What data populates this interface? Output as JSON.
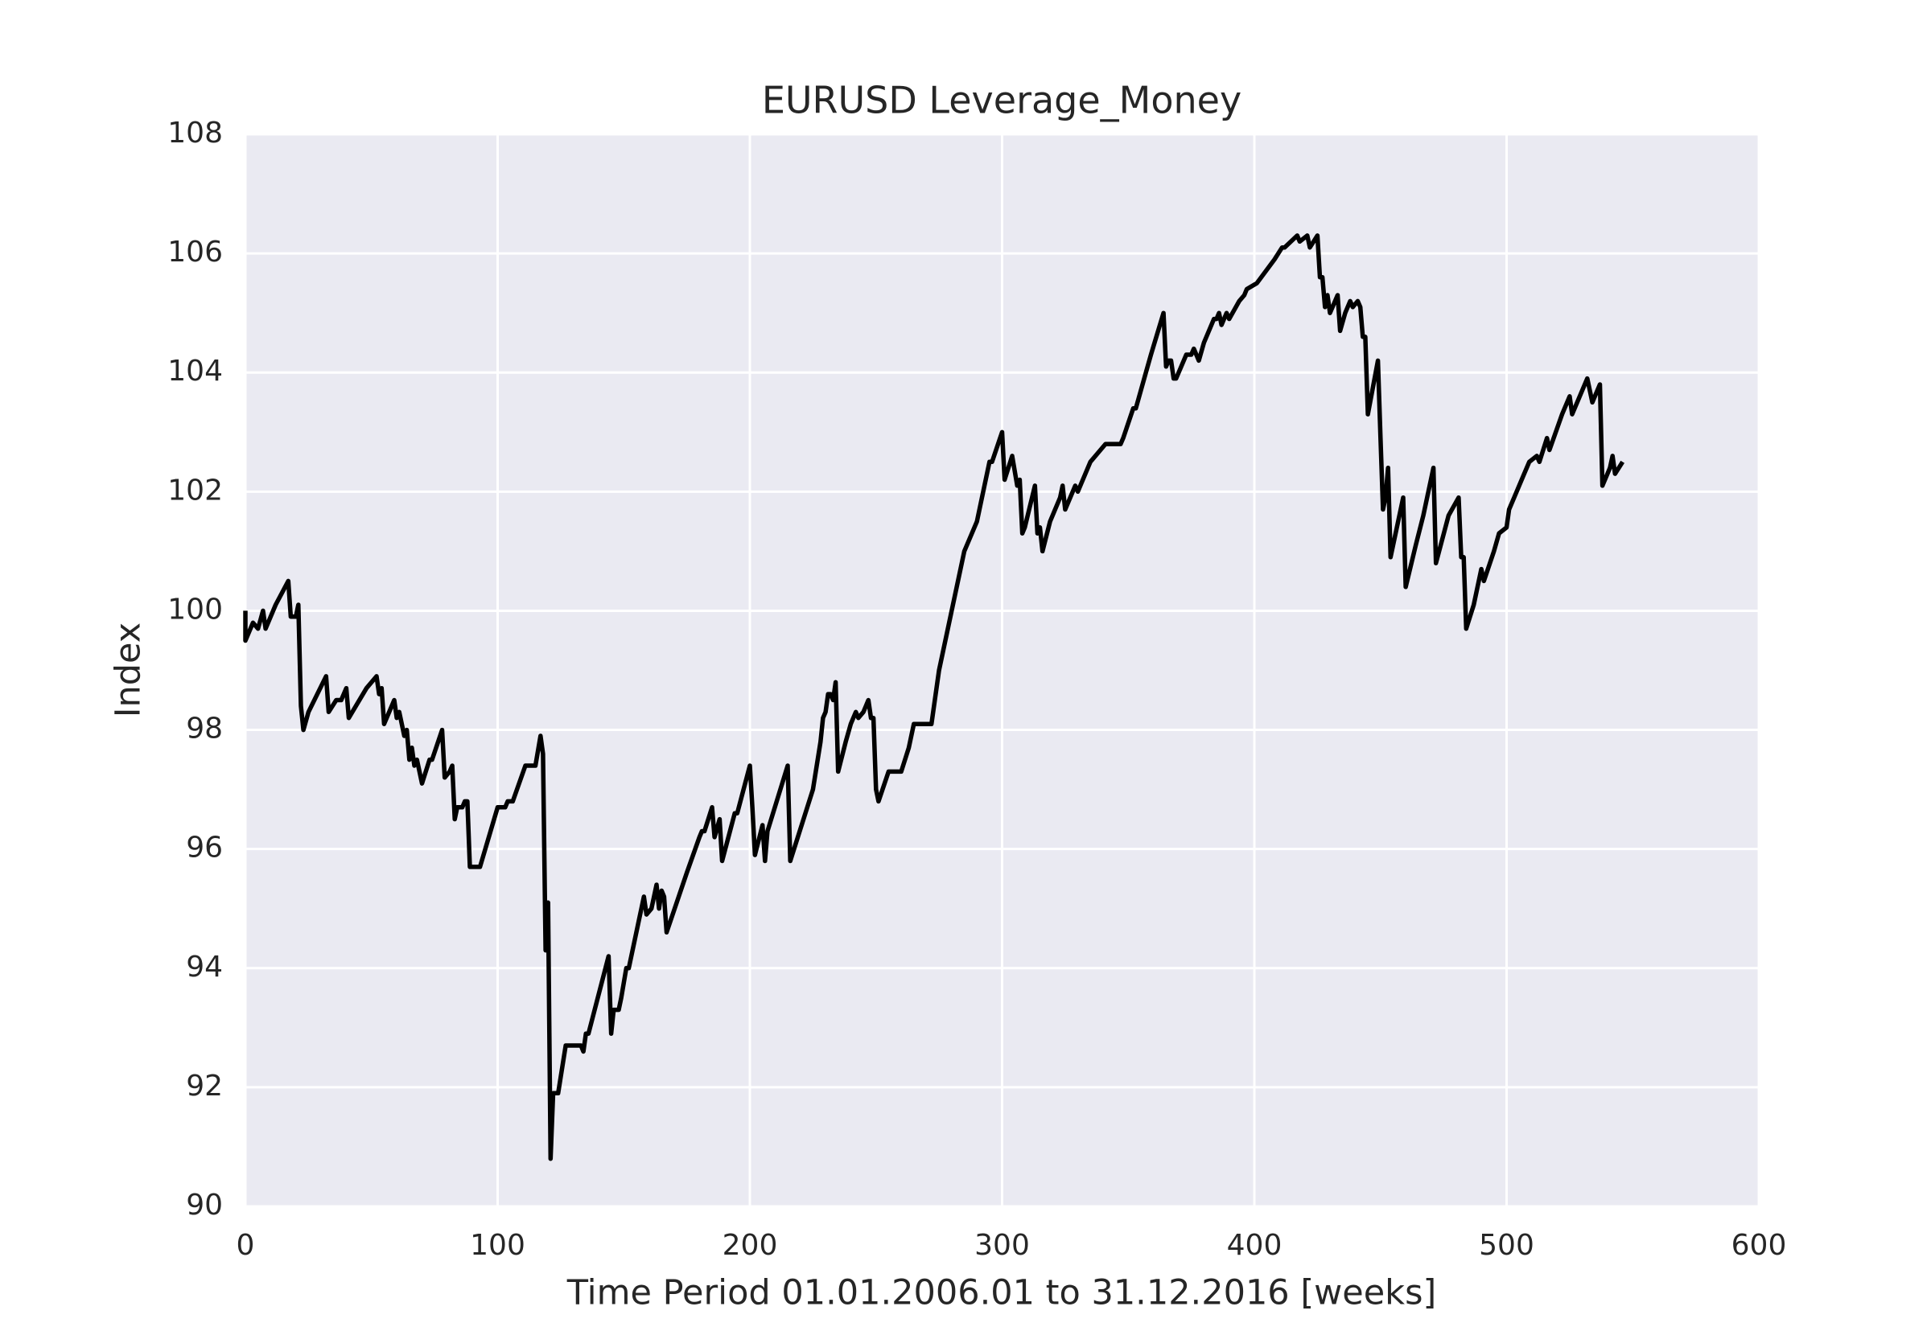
{
  "chart_data": {
    "type": "line",
    "title": "EURUSD Leverage_Money",
    "x_label": "Time Period 01.01.2006.01 to 31.12.2016 [weeks]",
    "y_label": "Index",
    "xlim": [
      0,
      600
    ],
    "xticks": [
      0,
      100,
      200,
      300,
      400,
      500,
      600
    ],
    "ylim": [
      90,
      108
    ],
    "yticks": [
      90,
      92,
      94,
      96,
      98,
      100,
      102,
      104,
      106,
      108
    ],
    "grid": true,
    "background": "#eaeaf2",
    "series": [
      {
        "color": "#000000",
        "x": [
          0,
          0,
          3,
          5,
          7,
          8,
          12,
          17,
          18,
          20,
          21,
          22,
          23,
          25,
          32,
          33,
          36,
          38,
          40,
          41,
          48,
          52,
          53,
          54,
          55,
          59,
          60,
          61,
          63,
          64,
          65,
          66,
          67,
          68,
          70,
          73,
          74,
          78,
          79,
          81,
          82,
          83,
          84,
          86,
          87,
          88,
          89,
          93,
          100,
          103,
          104,
          106,
          111,
          115,
          117,
          118,
          119,
          120,
          121,
          122,
          124,
          127,
          133,
          134,
          135,
          136,
          144,
          145,
          146,
          148,
          149,
          151,
          152,
          158,
          159,
          161,
          163,
          164,
          165,
          166,
          167,
          175,
          180,
          181,
          182,
          185,
          186,
          188,
          189,
          194,
          195,
          200,
          201,
          202,
          205,
          206,
          207,
          215,
          216,
          225,
          228,
          229,
          230,
          231,
          232,
          233,
          234,
          235,
          238,
          240,
          242,
          243,
          245,
          246,
          247,
          248,
          249,
          250,
          251,
          255,
          260,
          263,
          265,
          272,
          275,
          285,
          290,
          295,
          296,
          300,
          301,
          304,
          306,
          307,
          308,
          309,
          313,
          314,
          315,
          316,
          319,
          323,
          324,
          325,
          329,
          330,
          335,
          341,
          347,
          348,
          352,
          353,
          357,
          359,
          364,
          365,
          366,
          367,
          368,
          369,
          371,
          373,
          375,
          376,
          378,
          380,
          384,
          385,
          386,
          387,
          389,
          390,
          394,
          396,
          397,
          401,
          408,
          411,
          412,
          417,
          418,
          421,
          422,
          425,
          426,
          427,
          428,
          429,
          430,
          433,
          434,
          436,
          437,
          438,
          439,
          441,
          442,
          443,
          444,
          445,
          449,
          450,
          451,
          452,
          453,
          454,
          459,
          460,
          464,
          467,
          471,
          472,
          477,
          481,
          482,
          483,
          484,
          487,
          490,
          491,
          495,
          497,
          500,
          501,
          503,
          507,
          509,
          512,
          513,
          516,
          517,
          522,
          525,
          526,
          532,
          534,
          537,
          538,
          541,
          542,
          543,
          546
        ],
        "values": [
          100,
          99.5,
          99.8,
          99.7,
          100,
          99.7,
          100.1,
          100.5,
          99.9,
          99.9,
          100.1,
          98.4,
          98,
          98.3,
          98.9,
          98.3,
          98.5,
          98.5,
          98.7,
          98.2,
          98.7,
          98.9,
          98.6,
          98.7,
          98.1,
          98.5,
          98.2,
          98.3,
          97.9,
          98,
          97.5,
          97.7,
          97.4,
          97.5,
          97.1,
          97.5,
          97.5,
          98,
          97.2,
          97.3,
          97.4,
          96.5,
          96.7,
          96.7,
          96.8,
          96.8,
          95.7,
          95.7,
          96.7,
          96.7,
          96.8,
          96.8,
          97.4,
          97.4,
          97.9,
          97.6,
          94.3,
          95.1,
          90.8,
          91.9,
          91.9,
          92.7,
          92.7,
          92.6,
          92.9,
          92.9,
          94.2,
          92.9,
          93.3,
          93.3,
          93.5,
          94,
          94,
          95.2,
          94.9,
          95,
          95.4,
          95,
          95.3,
          95.2,
          94.6,
          95.6,
          96.2,
          96.3,
          96.3,
          96.7,
          96.2,
          96.5,
          95.8,
          96.6,
          96.6,
          97.4,
          96.7,
          95.9,
          96.4,
          95.8,
          96.3,
          97.4,
          95.8,
          97,
          97.8,
          98.2,
          98.3,
          98.6,
          98.6,
          98.5,
          98.8,
          97.3,
          97.8,
          98.1,
          98.3,
          98.2,
          98.3,
          98.4,
          98.5,
          98.2,
          98.2,
          97,
          96.8,
          97.3,
          97.3,
          97.7,
          98.1,
          98.1,
          99,
          101,
          101.5,
          102.5,
          102.5,
          103,
          102.2,
          102.6,
          102.1,
          102.2,
          101.3,
          101.4,
          102.1,
          101.3,
          101.4,
          101,
          101.5,
          101.9,
          102.1,
          101.7,
          102.1,
          102,
          102.5,
          102.8,
          102.8,
          102.9,
          103.4,
          103.4,
          104,
          104.3,
          105,
          104.1,
          104.2,
          104.2,
          103.9,
          103.9,
          104.1,
          104.3,
          104.3,
          104.4,
          104.2,
          104.5,
          104.9,
          104.9,
          105,
          104.8,
          105,
          104.9,
          105.2,
          105.3,
          105.4,
          105.5,
          105.9,
          106.1,
          106.1,
          106.3,
          106.2,
          106.3,
          106.1,
          106.3,
          105.6,
          105.6,
          105.1,
          105.3,
          105,
          105.3,
          104.7,
          105,
          105.1,
          105.2,
          105.1,
          105.2,
          105.1,
          104.6,
          104.6,
          103.3,
          104.2,
          102.9,
          101.7,
          101.9,
          102.4,
          100.9,
          101.9,
          100.4,
          101.1,
          101.6,
          102.4,
          100.8,
          101.6,
          101.9,
          100.9,
          100.9,
          99.7,
          100.1,
          100.7,
          100.5,
          101,
          101.3,
          101.4,
          101.7,
          101.9,
          102.3,
          102.5,
          102.6,
          102.5,
          102.9,
          102.7,
          103.3,
          103.6,
          103.3,
          103.9,
          103.5,
          103.8,
          102.1,
          102.4,
          102.6,
          102.3,
          102.5
        ]
      }
    ]
  }
}
